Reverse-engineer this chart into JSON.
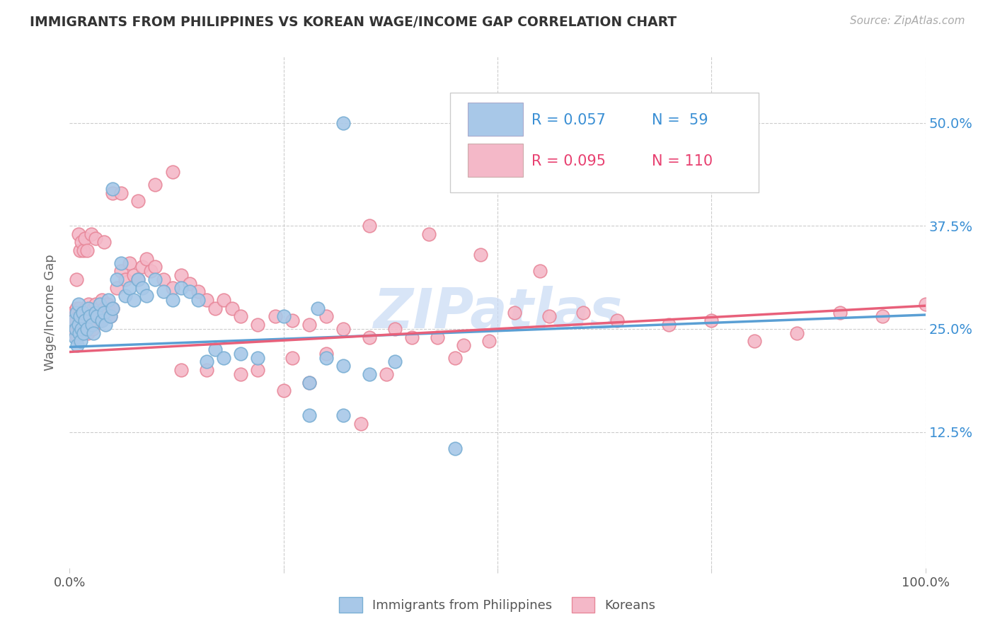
{
  "title": "IMMIGRANTS FROM PHILIPPINES VS KOREAN WAGE/INCOME GAP CORRELATION CHART",
  "source": "Source: ZipAtlas.com",
  "ylabel": "Wage/Income Gap",
  "color_blue": "#a8c8e8",
  "color_pink": "#f4b8c8",
  "color_blue_edge": "#7aafd4",
  "color_pink_edge": "#e8889a",
  "color_blue_line": "#5a9fd4",
  "color_pink_line": "#e8607a",
  "color_blue_text": "#3a8fd4",
  "color_pink_text": "#e84070",
  "watermark_color": "#c8daf5",
  "xlim": [
    0.0,
    1.0
  ],
  "ylim": [
    -0.04,
    0.58
  ],
  "ytick_vals": [
    0.125,
    0.25,
    0.375,
    0.5
  ],
  "ytick_labels": [
    "12.5%",
    "25.0%",
    "37.5%",
    "50.0%"
  ],
  "line_blue_x0": 0.0,
  "line_blue_y0": 0.228,
  "line_blue_x1": 1.0,
  "line_blue_y1": 0.267,
  "line_pink_x0": 0.0,
  "line_pink_y0": 0.222,
  "line_pink_x1": 1.0,
  "line_pink_y1": 0.278,
  "phil_x": [
    0.005,
    0.006,
    0.007,
    0.008,
    0.009,
    0.01,
    0.01,
    0.011,
    0.012,
    0.013,
    0.014,
    0.015,
    0.016,
    0.018,
    0.02,
    0.022,
    0.024,
    0.026,
    0.028,
    0.03,
    0.032,
    0.035,
    0.038,
    0.04,
    0.042,
    0.045,
    0.048,
    0.05,
    0.055,
    0.06,
    0.065,
    0.07,
    0.075,
    0.08,
    0.085,
    0.09,
    0.1,
    0.11,
    0.12,
    0.13,
    0.14,
    0.15,
    0.16,
    0.17,
    0.18,
    0.2,
    0.22,
    0.25,
    0.28,
    0.3,
    0.32,
    0.35,
    0.38,
    0.28,
    0.32,
    0.45,
    0.32,
    0.05,
    0.29
  ],
  "phil_y": [
    0.26,
    0.24,
    0.25,
    0.27,
    0.23,
    0.28,
    0.255,
    0.245,
    0.265,
    0.235,
    0.25,
    0.27,
    0.245,
    0.26,
    0.25,
    0.275,
    0.265,
    0.255,
    0.245,
    0.27,
    0.265,
    0.28,
    0.26,
    0.27,
    0.255,
    0.285,
    0.265,
    0.275,
    0.31,
    0.33,
    0.29,
    0.3,
    0.285,
    0.31,
    0.3,
    0.29,
    0.31,
    0.295,
    0.285,
    0.3,
    0.295,
    0.285,
    0.21,
    0.225,
    0.215,
    0.22,
    0.215,
    0.265,
    0.185,
    0.215,
    0.205,
    0.195,
    0.21,
    0.145,
    0.145,
    0.105,
    0.5,
    0.42,
    0.275
  ],
  "kor_x": [
    0.004,
    0.005,
    0.006,
    0.007,
    0.008,
    0.009,
    0.01,
    0.01,
    0.011,
    0.012,
    0.013,
    0.014,
    0.015,
    0.016,
    0.017,
    0.018,
    0.019,
    0.02,
    0.021,
    0.022,
    0.023,
    0.024,
    0.025,
    0.026,
    0.027,
    0.028,
    0.03,
    0.032,
    0.034,
    0.036,
    0.038,
    0.04,
    0.042,
    0.044,
    0.046,
    0.048,
    0.05,
    0.055,
    0.06,
    0.065,
    0.07,
    0.075,
    0.08,
    0.085,
    0.09,
    0.095,
    0.1,
    0.11,
    0.12,
    0.13,
    0.14,
    0.15,
    0.16,
    0.17,
    0.18,
    0.19,
    0.2,
    0.22,
    0.24,
    0.26,
    0.28,
    0.3,
    0.32,
    0.35,
    0.38,
    0.4,
    0.43,
    0.46,
    0.49,
    0.52,
    0.56,
    0.6,
    0.64,
    0.7,
    0.75,
    0.8,
    0.85,
    0.9,
    0.95,
    1.0,
    0.008,
    0.01,
    0.012,
    0.014,
    0.016,
    0.018,
    0.02,
    0.025,
    0.03,
    0.04,
    0.05,
    0.06,
    0.08,
    0.1,
    0.12,
    0.35,
    0.42,
    0.48,
    0.55,
    0.13,
    0.16,
    0.2,
    0.22,
    0.26,
    0.3,
    0.45,
    0.37,
    0.28,
    0.25,
    0.34
  ],
  "kor_y": [
    0.27,
    0.255,
    0.245,
    0.26,
    0.275,
    0.24,
    0.265,
    0.25,
    0.275,
    0.26,
    0.245,
    0.255,
    0.27,
    0.25,
    0.265,
    0.255,
    0.275,
    0.26,
    0.245,
    0.28,
    0.265,
    0.255,
    0.27,
    0.26,
    0.25,
    0.275,
    0.28,
    0.265,
    0.275,
    0.26,
    0.285,
    0.275,
    0.265,
    0.28,
    0.27,
    0.265,
    0.275,
    0.3,
    0.32,
    0.31,
    0.33,
    0.315,
    0.31,
    0.325,
    0.335,
    0.32,
    0.325,
    0.31,
    0.3,
    0.315,
    0.305,
    0.295,
    0.285,
    0.275,
    0.285,
    0.275,
    0.265,
    0.255,
    0.265,
    0.26,
    0.255,
    0.265,
    0.25,
    0.24,
    0.25,
    0.24,
    0.24,
    0.23,
    0.235,
    0.27,
    0.265,
    0.27,
    0.26,
    0.255,
    0.26,
    0.235,
    0.245,
    0.27,
    0.265,
    0.28,
    0.31,
    0.365,
    0.345,
    0.355,
    0.345,
    0.36,
    0.345,
    0.365,
    0.36,
    0.355,
    0.415,
    0.415,
    0.405,
    0.425,
    0.44,
    0.375,
    0.365,
    0.34,
    0.32,
    0.2,
    0.2,
    0.195,
    0.2,
    0.215,
    0.22,
    0.215,
    0.195,
    0.185,
    0.175,
    0.135
  ],
  "legend_R1_label": "R = 0.057",
  "legend_N1_label": "N =  59",
  "legend_R2_label": "R = 0.095",
  "legend_N2_label": "N = 110"
}
